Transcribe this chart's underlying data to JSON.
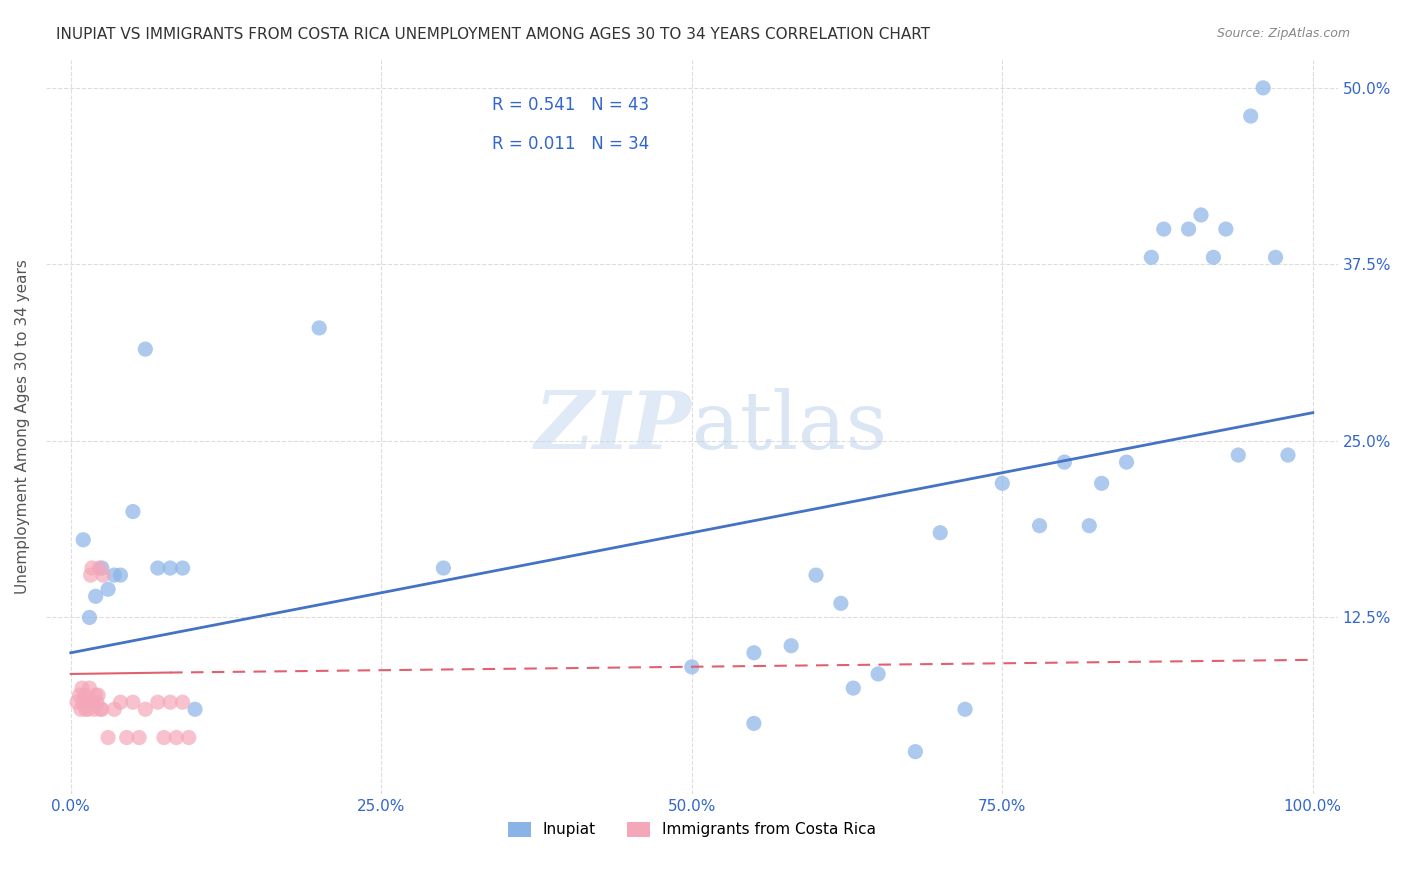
{
  "title": "INUPIAT VS IMMIGRANTS FROM COSTA RICA UNEMPLOYMENT AMONG AGES 30 TO 34 YEARS CORRELATION CHART",
  "source": "Source: ZipAtlas.com",
  "ylabel_label": "Unemployment Among Ages 30 to 34 years",
  "legend_r_blue": "0.541",
  "legend_n_blue": "43",
  "legend_r_pink": "0.011",
  "legend_n_pink": "34",
  "watermark_zip": "ZIP",
  "watermark_atlas": "atlas",
  "blue_scatter_x": [
    0.01,
    0.02,
    0.03,
    0.04,
    0.015,
    0.025,
    0.035,
    0.05,
    0.06,
    0.07,
    0.08,
    0.09,
    0.1,
    0.2,
    0.3,
    0.5,
    0.55,
    0.6,
    0.65,
    0.7,
    0.75,
    0.8,
    0.82,
    0.85,
    0.88,
    0.9,
    0.91,
    0.92,
    0.93,
    0.94,
    0.95,
    0.96,
    0.97,
    0.98,
    0.62,
    0.63,
    0.55,
    0.58,
    0.68,
    0.72,
    0.78,
    0.83,
    0.87
  ],
  "blue_scatter_y": [
    0.18,
    0.14,
    0.145,
    0.155,
    0.125,
    0.16,
    0.155,
    0.2,
    0.315,
    0.16,
    0.16,
    0.16,
    0.06,
    0.33,
    0.16,
    0.09,
    0.1,
    0.155,
    0.085,
    0.185,
    0.22,
    0.235,
    0.19,
    0.235,
    0.4,
    0.4,
    0.41,
    0.38,
    0.4,
    0.24,
    0.48,
    0.5,
    0.38,
    0.24,
    0.135,
    0.075,
    0.05,
    0.105,
    0.03,
    0.06,
    0.19,
    0.22,
    0.38
  ],
  "pink_scatter_x": [
    0.005,
    0.007,
    0.008,
    0.009,
    0.01,
    0.011,
    0.012,
    0.013,
    0.014,
    0.015,
    0.016,
    0.017,
    0.018,
    0.019,
    0.02,
    0.021,
    0.022,
    0.023,
    0.024,
    0.025,
    0.026,
    0.03,
    0.035,
    0.04,
    0.045,
    0.05,
    0.055,
    0.06,
    0.07,
    0.075,
    0.08,
    0.085,
    0.09,
    0.095
  ],
  "pink_scatter_y": [
    0.065,
    0.07,
    0.06,
    0.075,
    0.065,
    0.07,
    0.06,
    0.065,
    0.06,
    0.075,
    0.155,
    0.16,
    0.065,
    0.06,
    0.07,
    0.065,
    0.07,
    0.16,
    0.06,
    0.06,
    0.155,
    0.04,
    0.06,
    0.065,
    0.04,
    0.065,
    0.04,
    0.06,
    0.065,
    0.04,
    0.065,
    0.04,
    0.065,
    0.04
  ],
  "blue_line_x": [
    0.0,
    1.0
  ],
  "blue_line_y_start": 0.1,
  "blue_line_y_end": 0.27,
  "pink_line_y_start": 0.085,
  "pink_line_y_end": 0.095,
  "scatter_size": 120,
  "blue_color": "#8ab4e8",
  "pink_color": "#f4a7b9",
  "blue_line_color": "#4472c4",
  "pink_line_color": "#e06070",
  "background_color": "#ffffff",
  "grid_color": "#dddddd",
  "ylim": [
    0.0,
    0.52
  ],
  "xlim": [
    -0.02,
    1.02
  ],
  "ytick_vals": [
    0.125,
    0.25,
    0.375,
    0.5
  ],
  "xtick_vals": [
    0.0,
    0.25,
    0.5,
    0.75,
    1.0
  ],
  "xtick_labels": [
    "0.0%",
    "25.0%",
    "50.0%",
    "75.0%",
    "100.0%"
  ],
  "ytick_labels_right": [
    "12.5%",
    "25.0%",
    "37.5%",
    "50.0%"
  ]
}
